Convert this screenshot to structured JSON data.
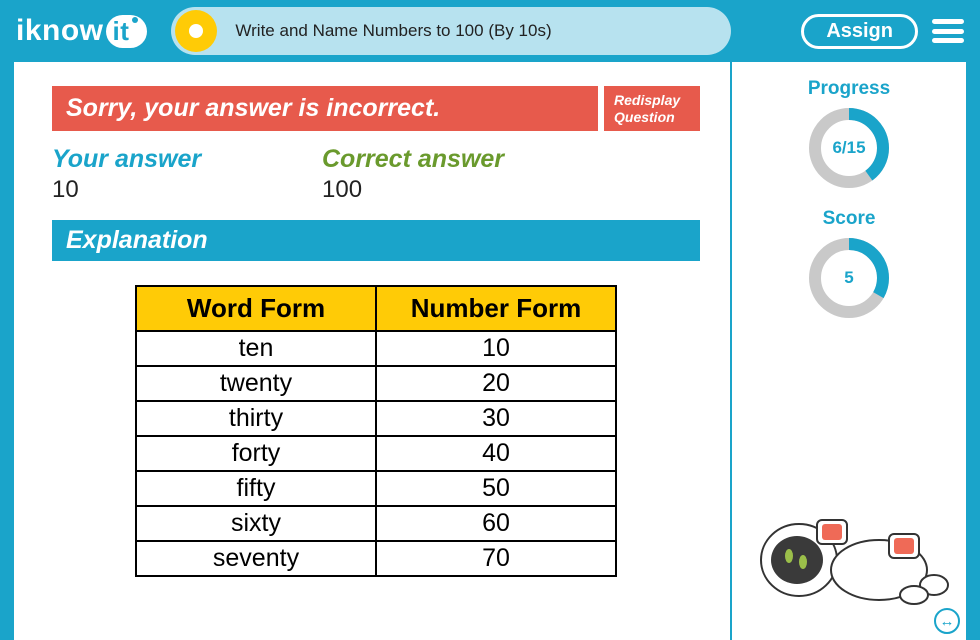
{
  "brand": {
    "part1": "iknow",
    "part2": "it"
  },
  "header": {
    "lesson_title": "Write and Name Numbers to 100 (By 10s)",
    "assign_label": "Assign"
  },
  "feedback": {
    "message": "Sorry, your answer is incorrect.",
    "redisplay_label": "Redisplay Question",
    "your_answer_label": "Your answer",
    "your_answer_value": "10",
    "correct_answer_label": "Correct answer",
    "correct_answer_value": "100",
    "explanation_label": "Explanation"
  },
  "table": {
    "headers": [
      "Word Form",
      "Number Form"
    ],
    "rows": [
      [
        "ten",
        "10"
      ],
      [
        "twenty",
        "20"
      ],
      [
        "thirty",
        "30"
      ],
      [
        "forty",
        "40"
      ],
      [
        "fifty",
        "50"
      ],
      [
        "sixty",
        "60"
      ],
      [
        "seventy",
        "70"
      ]
    ]
  },
  "sidebar": {
    "progress_label": "Progress",
    "progress_text": "6/15",
    "progress_value": 6,
    "progress_total": 15,
    "score_label": "Score",
    "score_text": "5",
    "score_value": 5,
    "score_total": 15
  },
  "colors": {
    "brand_blue": "#1aa4ca",
    "pill_bg": "#b7e2ef",
    "yellow": "#ffcb06",
    "red": "#e75a4c",
    "green": "#6a9a2d",
    "ring_track": "#c9c9c9"
  }
}
